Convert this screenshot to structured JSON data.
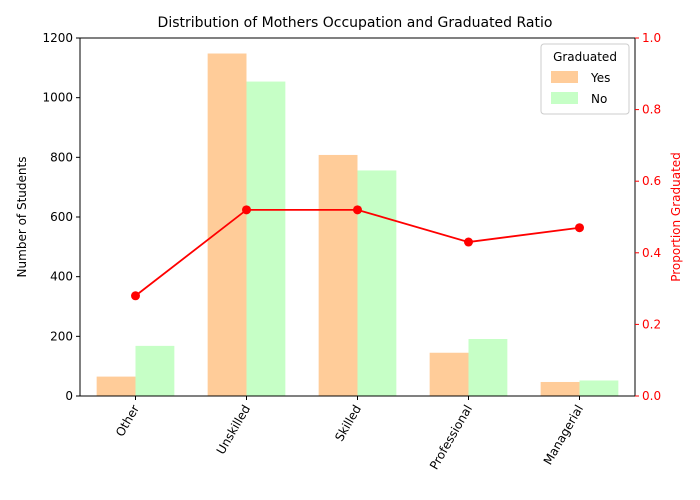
{
  "chart_data": {
    "type": "bar",
    "title": "Distribution of Mothers Occupation and Graduated Ratio",
    "xlabel": "",
    "ylabel": "Number of Students",
    "y2label": "Proportion Graduated",
    "categories": [
      "Other",
      "Unskilled",
      "Skilled",
      "Professional",
      "Managerial"
    ],
    "series": [
      {
        "name": "Yes",
        "values": [
          65,
          1148,
          808,
          145,
          47
        ],
        "color": "#ffcc99"
      },
      {
        "name": "No",
        "values": [
          168,
          1054,
          756,
          191,
          52
        ],
        "color": "#c6ffc6"
      }
    ],
    "line_series": {
      "values": [
        0.28,
        0.52,
        0.52,
        0.43,
        0.47
      ],
      "color": "#ff0000",
      "axis": "right"
    },
    "ylim": [
      0,
      1200
    ],
    "yticks": [
      0,
      200,
      400,
      600,
      800,
      1000,
      1200
    ],
    "y2lim": [
      0,
      1.0
    ],
    "y2ticks": [
      "0.0",
      "0.2",
      "0.4",
      "0.6",
      "0.8",
      "1.0"
    ],
    "legend": {
      "title": "Graduated",
      "position": "top-right"
    },
    "grid": false
  }
}
